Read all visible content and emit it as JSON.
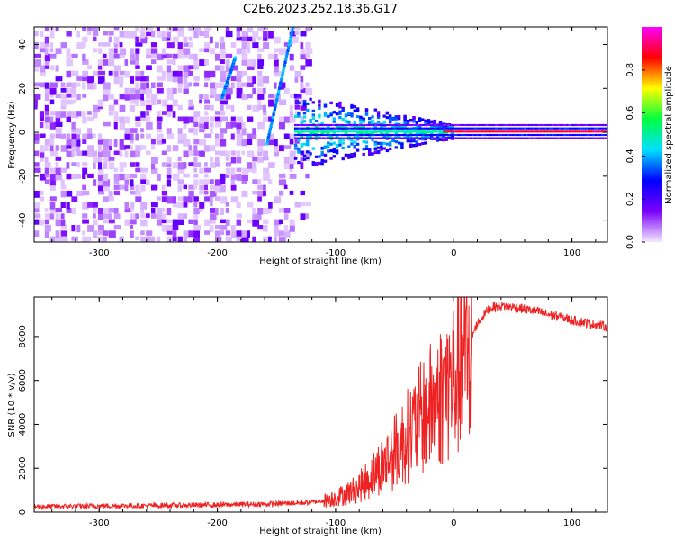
{
  "figure": {
    "title": "C2E6.2023.252.18.36.G17"
  },
  "chart_data": [
    {
      "type": "heatmap",
      "xlabel": "Height of straight line (km)",
      "ylabel": "Frequency (Hz)",
      "xlim": [
        -355,
        130
      ],
      "ylim": [
        -50,
        48
      ],
      "xticks": [
        -300,
        -200,
        -100,
        0,
        100
      ],
      "yticks": [
        -40,
        -20,
        0,
        20,
        40
      ],
      "xtick_labels": [
        "-300",
        "-200",
        "-100",
        "0",
        "100"
      ],
      "ytick_labels": [
        "-40",
        "-20",
        "0",
        "20",
        "40"
      ],
      "colorbar": {
        "label": "Normalized spectral amplitude",
        "range": [
          0,
          1
        ],
        "ticks": [
          0.0,
          0.2,
          0.4,
          0.6,
          0.8
        ],
        "tick_labels": [
          "0.0",
          "0.2",
          "0.4",
          "0.6",
          "0.8"
        ],
        "colormap": [
          "#f4eaff",
          "#7a00ff",
          "#0000ff",
          "#00e0ff",
          "#00ff40",
          "#ffff00",
          "#ff0000",
          "#ff00ff"
        ]
      },
      "features": {
        "noise_region_x": [
          -355,
          -125
        ],
        "carrier_line_x": [
          -135,
          130
        ],
        "carrier_line_freq": 0,
        "slanted_streaks": [
          {
            "x": [
              -158,
              -136
            ],
            "y": [
              -5,
              48
            ]
          },
          {
            "x": [
              -196,
              -185
            ],
            "y": [
              16,
              34
            ]
          }
        ]
      }
    },
    {
      "type": "line",
      "xlabel": "Height of straight line (km)",
      "ylabel": "SNR (10 * v/v)",
      "xlim": [
        -355,
        130
      ],
      "ylim": [
        0,
        9800
      ],
      "xticks": [
        -300,
        -200,
        -100,
        0,
        100
      ],
      "yticks": [
        0,
        2000,
        4000,
        6000,
        8000
      ],
      "xtick_labels": [
        "-300",
        "-200",
        "-100",
        "0",
        "100"
      ],
      "ytick_labels": [
        "0",
        "2000",
        "4000",
        "6000",
        "8000"
      ],
      "color": "#ee2222",
      "series": [
        {
          "x": [
            -355,
            -300,
            -250,
            -200,
            -150,
            -120,
            -110,
            -100,
            -90,
            -80,
            -70,
            -60,
            -50,
            -40,
            -30,
            -20,
            -10,
            0,
            10,
            20,
            30,
            40,
            50,
            60,
            70,
            80,
            90,
            100,
            110,
            120,
            130
          ],
          "values": [
            250,
            280,
            300,
            330,
            380,
            450,
            550,
            700,
            900,
            1200,
            1700,
            2300,
            2900,
            3600,
            4300,
            5000,
            5700,
            6400,
            7300,
            8600,
            9300,
            9400,
            9350,
            9250,
            9150,
            9000,
            8900,
            8750,
            8650,
            8550,
            8450
          ]
        }
      ]
    }
  ]
}
